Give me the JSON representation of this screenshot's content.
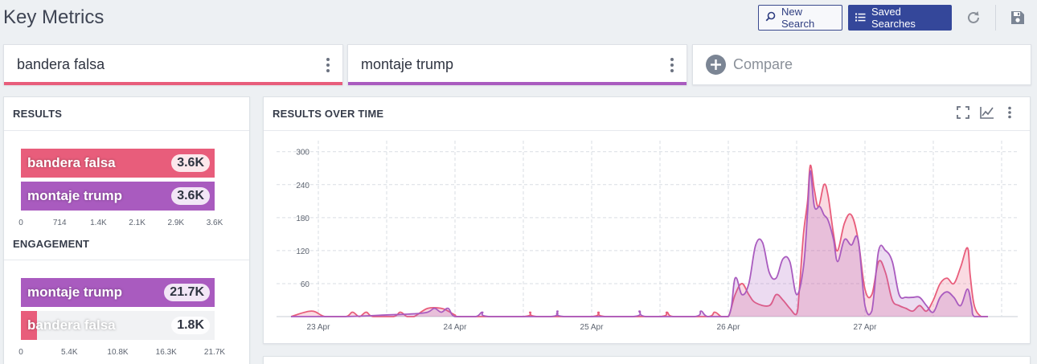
{
  "header": {
    "title": "Key Metrics",
    "new_search_label": "New Search",
    "saved_searches_label": "Saved Searches",
    "icons": [
      "search-icon",
      "list-icon",
      "refresh-icon",
      "save-icon"
    ]
  },
  "queries": [
    {
      "label": "bandera falsa",
      "color": "#e85d7b"
    },
    {
      "label": "montaje trump",
      "color": "#a95bbf"
    }
  ],
  "compare": {
    "label": "Compare"
  },
  "results": {
    "title": "RESULTS",
    "bars": [
      {
        "label": "bandera falsa",
        "value": "3.6K",
        "fraction": 1.0,
        "color": "#e85d7b"
      },
      {
        "label": "montaje trump",
        "value": "3.6K",
        "fraction": 1.0,
        "color": "#a95bbf"
      }
    ],
    "ticks": [
      "0",
      "714",
      "1.4K",
      "2.1K",
      "2.9K",
      "3.6K"
    ]
  },
  "engagement": {
    "title": "ENGAGEMENT",
    "bars": [
      {
        "label": "montaje trump",
        "value": "21.7K",
        "fraction": 1.0,
        "color": "#a95bbf"
      },
      {
        "label": "bandera falsa",
        "value": "1.8K",
        "fraction": 0.083,
        "color": "#e85d7b"
      }
    ],
    "ticks": [
      "0",
      "5.4K",
      "10.8K",
      "16.3K",
      "21.7K"
    ]
  },
  "over_time": {
    "title": "RESULTS OVER TIME",
    "icons": [
      "fullscreen-icon",
      "line-chart-icon",
      "more-vert-icon"
    ]
  },
  "chart_data": {
    "type": "area",
    "title": "RESULTS OVER TIME",
    "xlabel": "",
    "ylabel": "",
    "x_ticks": [
      "23 Apr",
      "24 Apr",
      "25 Apr",
      "26 Apr",
      "27 Apr"
    ],
    "y_ticks": [
      60,
      120,
      180,
      240,
      300
    ],
    "ylim": [
      0,
      320
    ],
    "grid": true,
    "x_range_days": [
      -0.2,
      4.9
    ],
    "series": [
      {
        "name": "bandera falsa",
        "color": "#e85d7b",
        "points": [
          [
            -0.2,
            0
          ],
          [
            -0.05,
            10
          ],
          [
            0.05,
            0
          ],
          [
            0.2,
            0
          ],
          [
            0.25,
            8
          ],
          [
            0.3,
            0
          ],
          [
            0.35,
            8
          ],
          [
            0.4,
            0
          ],
          [
            0.55,
            0
          ],
          [
            0.6,
            8
          ],
          [
            0.65,
            0
          ],
          [
            0.7,
            0
          ],
          [
            0.8,
            15
          ],
          [
            0.9,
            15
          ],
          [
            0.95,
            10
          ],
          [
            1.0,
            3
          ],
          [
            1.05,
            0
          ],
          [
            1.5,
            0
          ],
          [
            1.55,
            8
          ],
          [
            1.6,
            0
          ],
          [
            2.0,
            0
          ],
          [
            2.05,
            8
          ],
          [
            2.1,
            0
          ],
          [
            2.5,
            0
          ],
          [
            2.55,
            8
          ],
          [
            2.6,
            0
          ],
          [
            2.85,
            0
          ],
          [
            2.9,
            8
          ],
          [
            2.95,
            0
          ],
          [
            3.0,
            0
          ],
          [
            3.05,
            40
          ],
          [
            3.1,
            60
          ],
          [
            3.15,
            40
          ],
          [
            3.2,
            25
          ],
          [
            3.3,
            20
          ],
          [
            3.35,
            40
          ],
          [
            3.4,
            30
          ],
          [
            3.45,
            15
          ],
          [
            3.5,
            5
          ],
          [
            3.52,
            50
          ],
          [
            3.55,
            150
          ],
          [
            3.58,
            210
          ],
          [
            3.6,
            275
          ],
          [
            3.63,
            230
          ],
          [
            3.66,
            200
          ],
          [
            3.7,
            240
          ],
          [
            3.73,
            220
          ],
          [
            3.77,
            150
          ],
          [
            3.8,
            120
          ],
          [
            3.85,
            170
          ],
          [
            3.9,
            185
          ],
          [
            3.95,
            140
          ],
          [
            4.0,
            50
          ],
          [
            4.05,
            40
          ],
          [
            4.1,
            100
          ],
          [
            4.15,
            80
          ],
          [
            4.2,
            30
          ],
          [
            4.25,
            20
          ],
          [
            4.3,
            15
          ],
          [
            4.35,
            10
          ],
          [
            4.4,
            20
          ],
          [
            4.45,
            10
          ],
          [
            4.5,
            30
          ],
          [
            4.55,
            60
          ],
          [
            4.6,
            70
          ],
          [
            4.65,
            60
          ],
          [
            4.7,
            90
          ],
          [
            4.75,
            125
          ],
          [
            4.77,
            75
          ],
          [
            4.8,
            20
          ],
          [
            4.85,
            0
          ],
          [
            4.9,
            0
          ]
        ]
      },
      {
        "name": "montaje trump",
        "color": "#a95bbf",
        "points": [
          [
            -0.2,
            0
          ],
          [
            0.2,
            0
          ],
          [
            0.5,
            3
          ],
          [
            0.7,
            5
          ],
          [
            0.8,
            8
          ],
          [
            0.85,
            15
          ],
          [
            0.9,
            8
          ],
          [
            0.95,
            15
          ],
          [
            1.0,
            0
          ],
          [
            1.15,
            0
          ],
          [
            1.2,
            8
          ],
          [
            1.25,
            0
          ],
          [
            1.7,
            0
          ],
          [
            1.75,
            10
          ],
          [
            1.8,
            0
          ],
          [
            2.3,
            0
          ],
          [
            2.35,
            10
          ],
          [
            2.4,
            0
          ],
          [
            2.75,
            0
          ],
          [
            2.8,
            10
          ],
          [
            2.85,
            0
          ],
          [
            3.0,
            0
          ],
          [
            3.05,
            70
          ],
          [
            3.1,
            40
          ],
          [
            3.15,
            60
          ],
          [
            3.2,
            130
          ],
          [
            3.25,
            135
          ],
          [
            3.3,
            80
          ],
          [
            3.35,
            70
          ],
          [
            3.4,
            105
          ],
          [
            3.45,
            100
          ],
          [
            3.5,
            40
          ],
          [
            3.55,
            90
          ],
          [
            3.58,
            190
          ],
          [
            3.6,
            265
          ],
          [
            3.63,
            200
          ],
          [
            3.67,
            200
          ],
          [
            3.7,
            185
          ],
          [
            3.73,
            175
          ],
          [
            3.77,
            140
          ],
          [
            3.8,
            100
          ],
          [
            3.85,
            140
          ],
          [
            3.9,
            130
          ],
          [
            3.95,
            140
          ],
          [
            4.0,
            20
          ],
          [
            4.05,
            10
          ],
          [
            4.1,
            120
          ],
          [
            4.15,
            120
          ],
          [
            4.2,
            100
          ],
          [
            4.25,
            40
          ],
          [
            4.3,
            35
          ],
          [
            4.35,
            35
          ],
          [
            4.4,
            35
          ],
          [
            4.45,
            20
          ],
          [
            4.5,
            8
          ],
          [
            4.55,
            35
          ],
          [
            4.6,
            45
          ],
          [
            4.65,
            35
          ],
          [
            4.7,
            20
          ],
          [
            4.75,
            50
          ],
          [
            4.78,
            20
          ],
          [
            4.8,
            0
          ],
          [
            4.9,
            0
          ]
        ]
      }
    ]
  }
}
